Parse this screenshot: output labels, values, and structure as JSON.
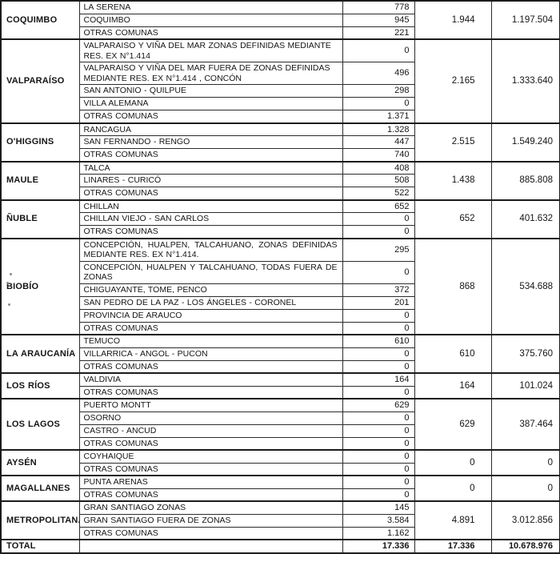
{
  "colors": {
    "ink": "#151515",
    "paper": "#ffffff",
    "grid": "#2b2b2b"
  },
  "table": {
    "regions": [
      {
        "name": "COQUIMBO",
        "subtotal": "1.944",
        "total": "1.197.504",
        "rows": [
          {
            "commune": "LA SERENA",
            "value": "778"
          },
          {
            "commune": "COQUIMBO",
            "value": "945"
          },
          {
            "commune": "OTRAS COMUNAS",
            "value": "221"
          }
        ]
      },
      {
        "name": "VALPARAÍSO",
        "subtotal": "2.165",
        "total": "1.333.640",
        "rows": [
          {
            "commune": "VALPARAISO Y VIÑA DEL MAR ZONAS DEFINIDAS MEDIANTE RES. EX N°1.414",
            "value": "0"
          },
          {
            "commune": "VALPARAISO Y VIÑA DEL MAR FUERA DE ZONAS DEFINIDAS MEDIANTE RES. EX N°1.414 , CONCÓN",
            "value": "496"
          },
          {
            "commune": "SAN ANTONIO - QUILPUE",
            "value": "298"
          },
          {
            "commune": "VILLA ALEMANA",
            "value": "0"
          },
          {
            "commune": "OTRAS COMUNAS",
            "value": "1.371"
          }
        ]
      },
      {
        "name": "O'HIGGINS",
        "subtotal": "2.515",
        "total": "1.549.240",
        "rows": [
          {
            "commune": "RANCAGUA",
            "value": "1.328"
          },
          {
            "commune": "SAN FERNANDO - RENGO",
            "value": "447"
          },
          {
            "commune": "OTRAS COMUNAS",
            "value": "740"
          }
        ]
      },
      {
        "name": "MAULE",
        "subtotal": "1.438",
        "total": "885.808",
        "rows": [
          {
            "commune": "TALCA",
            "value": "408"
          },
          {
            "commune": "LINARES - CURICÓ",
            "value": "508"
          },
          {
            "commune": "OTRAS COMUNAS",
            "value": "522"
          }
        ]
      },
      {
        "name": "ÑUBLE",
        "subtotal": "652",
        "total": "401.632",
        "rows": [
          {
            "commune": "CHILLAN",
            "value": "652"
          },
          {
            "commune": "CHILLAN VIEJO - SAN CARLOS",
            "value": "0"
          },
          {
            "commune": "OTRAS COMUNAS",
            "value": "0"
          }
        ]
      },
      {
        "name": "BIOBÍO",
        "subtotal": "868",
        "total": "534.688",
        "rows": [
          {
            "commune": "CONCEPCIÓN, HUALPEN, TALCAHUANO, ZONAS DEFINIDAS MEDIANTE RES. EX N°1.414.",
            "value": "295",
            "justify": true
          },
          {
            "commune": "CONCEPCIÓN, HUALPEN Y TALCAHUANO, TODAS FUERA DE ZONAS",
            "value": "0",
            "justify": true
          },
          {
            "commune": "CHIGUAYANTE, TOME, PENCO",
            "value": "372"
          },
          {
            "commune": "SAN PEDRO DE LA PAZ - LOS ÁNGELES  - CORONEL",
            "value": "201"
          },
          {
            "commune": "PROVINCIA DE ARAUCO",
            "value": "0"
          },
          {
            "commune": "OTRAS COMUNAS",
            "value": "0"
          }
        ]
      },
      {
        "name": "LA ARAUCANÍA",
        "subtotal": "610",
        "total": "375.760",
        "rows": [
          {
            "commune": "TEMUCO",
            "value": "610"
          },
          {
            "commune": "VILLARRICA - ANGOL - PUCON",
            "value": "0"
          },
          {
            "commune": "OTRAS COMUNAS",
            "value": "0"
          }
        ]
      },
      {
        "name": "LOS RÍOS",
        "subtotal": "164",
        "total": "101.024",
        "rows": [
          {
            "commune": "VALDIVIA",
            "value": "164"
          },
          {
            "commune": "OTRAS COMUNAS",
            "value": "0"
          }
        ]
      },
      {
        "name": "LOS LAGOS",
        "subtotal": "629",
        "total": "387.464",
        "rows": [
          {
            "commune": "PUERTO MONTT",
            "value": "629"
          },
          {
            "commune": "OSORNO",
            "value": "0"
          },
          {
            "commune": "CASTRO - ANCUD",
            "value": "0"
          },
          {
            "commune": "OTRAS COMUNAS",
            "value": "0"
          }
        ]
      },
      {
        "name": "AYSÉN",
        "subtotal": "0",
        "total": "0",
        "rows": [
          {
            "commune": "COYHAIQUE",
            "value": "0"
          },
          {
            "commune": "OTRAS COMUNAS",
            "value": "0"
          }
        ]
      },
      {
        "name": "MAGALLANES",
        "subtotal": "0",
        "total": "0",
        "rows": [
          {
            "commune": "PUNTA ARENAS",
            "value": "0"
          },
          {
            "commune": "OTRAS COMUNAS",
            "value": "0"
          }
        ]
      },
      {
        "name": "METROPOLITANA",
        "subtotal": "4.891",
        "total": "3.012.856",
        "rows": [
          {
            "commune": "GRAN SANTIAGO ZONAS",
            "value": "145"
          },
          {
            "commune": "GRAN SANTIAGO FUERA DE ZONAS",
            "value": "3.584"
          },
          {
            "commune": "OTRAS COMUNAS",
            "value": "1.162"
          }
        ]
      }
    ],
    "total_row": {
      "label": "TOTAL",
      "commune": "",
      "value": "17.336",
      "subtotal": "17.336",
      "total": "10.678.976"
    }
  }
}
